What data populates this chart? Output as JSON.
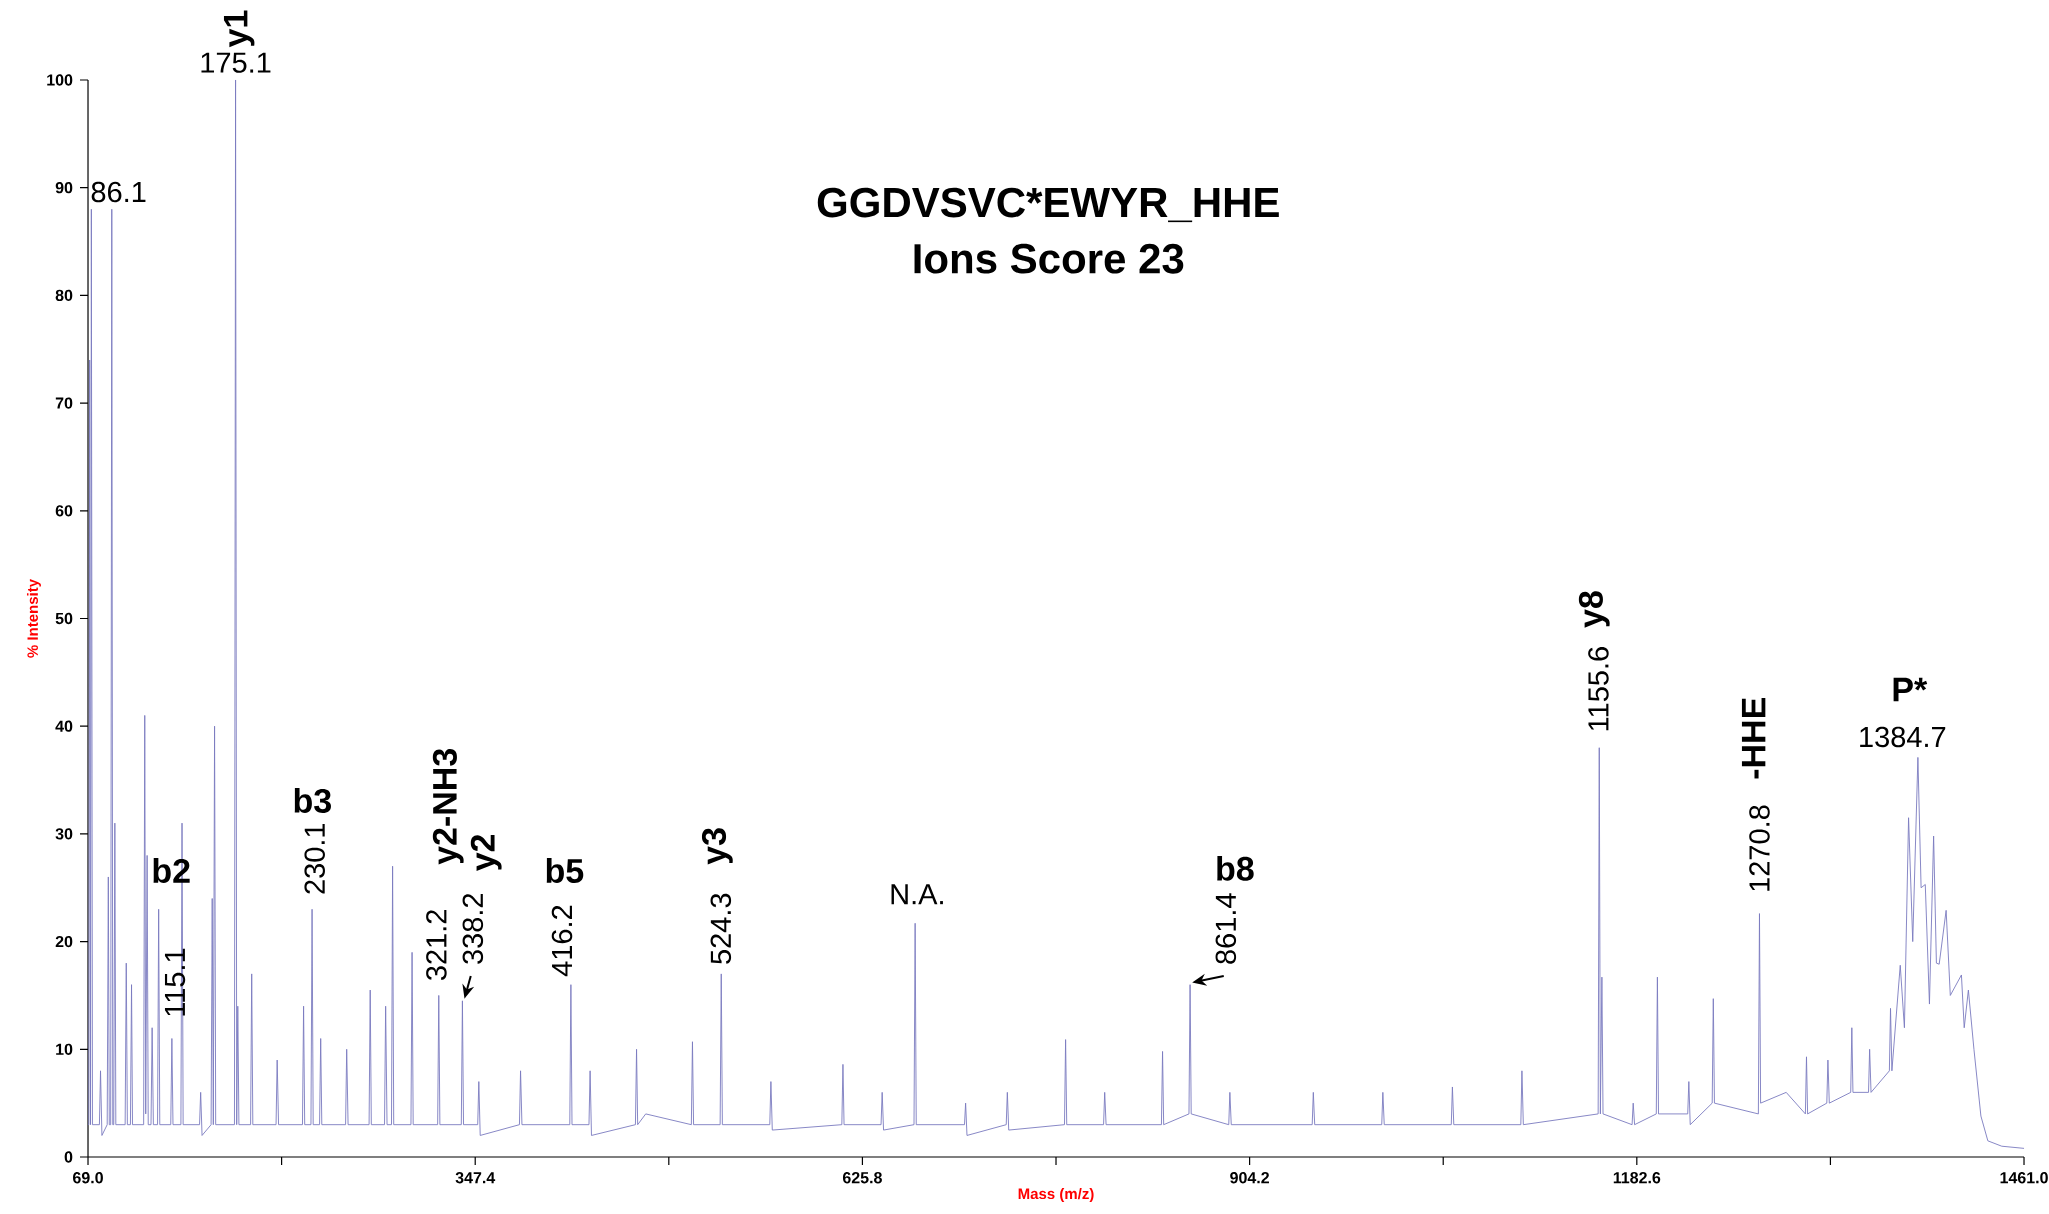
{
  "chart_data": {
    "type": "line",
    "title": "GGDVSVC*EWYR_HHE",
    "subtitle": "Ions Score 23",
    "xlabel": "Mass (m/z)",
    "ylabel": "% Intensity",
    "color": "#7b7bc0",
    "marker": "none",
    "line_style": "solid",
    "xlim": [
      69.0,
      1461.0
    ],
    "ylim": [
      0,
      100
    ],
    "xticks": [
      {
        "value": 69.0,
        "label": "69.0"
      },
      {
        "value": 208.2,
        "label": null
      },
      {
        "value": 347.4,
        "label": "347.4"
      },
      {
        "value": 486.6,
        "label": null
      },
      {
        "value": 625.8,
        "label": "625.8"
      },
      {
        "value": 765.0,
        "label": null
      },
      {
        "value": 904.2,
        "label": "904.2"
      },
      {
        "value": 1043.4,
        "label": null
      },
      {
        "value": 1182.6,
        "label": "1182.6"
      },
      {
        "value": 1321.8,
        "label": null
      },
      {
        "value": 1461.0,
        "label": "1461.0"
      }
    ],
    "yticks": [
      0,
      10,
      20,
      30,
      40,
      50,
      60,
      70,
      80,
      90,
      100
    ],
    "x": [
      69.0,
      69.6,
      70.2,
      70.8,
      71.4,
      72.2,
      77.2,
      78,
      79,
      82.8,
      83.6,
      84.3,
      85.3,
      86.1,
      86.8,
      87.5,
      88.3,
      89,
      95.7,
      96.5,
      97.3,
      99.5,
      100.3,
      101,
      109,
      109.8,
      110.5,
      111.5,
      112.3,
      114.3,
      115.1,
      116,
      119,
      119.8,
      120.6,
      128.5,
      129.3,
      130.1,
      135.8,
      136.6,
      137.4,
      149.2,
      150,
      151,
      157.5,
      158.3,
      159.1,
      160,
      160.8,
      174.3,
      175.1,
      175.9,
      176.7,
      177.5,
      185.9,
      186.7,
      187.5,
      204.2,
      205,
      206,
      223.2,
      224,
      224.8,
      229.3,
      230.1,
      230.9,
      235.5,
      236.3,
      237.1,
      254.2,
      255,
      256,
      271.1,
      271.9,
      272.7,
      282.2,
      283,
      284,
      287.2,
      288,
      288.8,
      301.2,
      302,
      302.8,
      320.4,
      321.2,
      322,
      337.4,
      338.2,
      339,
      349.2,
      350,
      351,
      379.2,
      380,
      381,
      415.4,
      416.2,
      417,
      429.2,
      430,
      431,
      462.6,
      463.4,
      464.2,
      470,
      502.8,
      503.6,
      504.4,
      523.5,
      524.3,
      525.1,
      559.2,
      560,
      561,
      611,
      611.8,
      612.6,
      639.2,
      640,
      641,
      662.9,
      663.7,
      664.5,
      699.2,
      700,
      701,
      729.2,
      730,
      731,
      771.1,
      771.9,
      772.7,
      799.2,
      800,
      801,
      840.8,
      841.6,
      842.4,
      860.6,
      861.4,
      862.2,
      889.2,
      890,
      891,
      949.2,
      950,
      951,
      999.2,
      1000,
      1001,
      1049.2,
      1050,
      1051,
      1099.2,
      1100,
      1101,
      1154.8,
      1155.6,
      1156.4,
      1157.5,
      1158.3,
      1179.2,
      1180,
      1181,
      1196.6,
      1197.4,
      1198.2,
      1219.2,
      1220,
      1221,
      1236.8,
      1237.6,
      1238.4,
      1270,
      1270.8,
      1271.6,
      1290,
      1303.8,
      1304.6,
      1305.4,
      1319.2,
      1320,
      1321,
      1336.4,
      1337.2,
      1338,
      1349.2,
      1350,
      1351,
      1364.2,
      1365,
      1366,
      1372,
      1375,
      1378,
      1381,
      1384.7,
      1387,
      1390,
      1393,
      1396,
      1398,
      1400,
      1405,
      1408,
      1416,
      1418,
      1421,
      1425,
      1430,
      1435,
      1445,
      1461
    ],
    "values": [
      3,
      3,
      74,
      3,
      88,
      3,
      3,
      8,
      2,
      3,
      26,
      3,
      3,
      88,
      3,
      3,
      31,
      3,
      3,
      18,
      3,
      3,
      16,
      3,
      3,
      41,
      4,
      28,
      3,
      3,
      12,
      3,
      3,
      23,
      3,
      3,
      11,
      3,
      3,
      31,
      3,
      3,
      6,
      2,
      3,
      24,
      3,
      40,
      3,
      3,
      100,
      3,
      14,
      3,
      3,
      17,
      3,
      3,
      9,
      3,
      3,
      14,
      3,
      3,
      23,
      3,
      3,
      11,
      3,
      3,
      10,
      3,
      3,
      15.5,
      3,
      3,
      14,
      3,
      3,
      27,
      3,
      3,
      19,
      3,
      3,
      15,
      3,
      3,
      14.5,
      3,
      3,
      7,
      2,
      3,
      8,
      3,
      3,
      16,
      3,
      3,
      8,
      2,
      3,
      10,
      3,
      4,
      3,
      10.7,
      3,
      3,
      17,
      3,
      3,
      7,
      2.5,
      3,
      8.6,
      3,
      3,
      6,
      2.5,
      3,
      21.7,
      3,
      3,
      5,
      2,
      3,
      6,
      2.5,
      3,
      10.9,
      3,
      3,
      6,
      3,
      3,
      9.8,
      3,
      4,
      16,
      4,
      3,
      6,
      3,
      3,
      6,
      3,
      3,
      6,
      3,
      3,
      6.5,
      3,
      3,
      8,
      3,
      4,
      38,
      4,
      16.7,
      4,
      3,
      5,
      3,
      4,
      16.7,
      4,
      4,
      7,
      3,
      5,
      14.7,
      5,
      4,
      22.6,
      5,
      6,
      4,
      9.3,
      4,
      5,
      9,
      5,
      6,
      12,
      6,
      6,
      10,
      6,
      8,
      13.8,
      8,
      17.8,
      12,
      31.5,
      20,
      37.1,
      25,
      25.3,
      14.2,
      29.8,
      18,
      17.9,
      22.9,
      15,
      16.9,
      12,
      15.5,
      10,
      3.8,
      1.5,
      1,
      0.8
    ],
    "annotations": [
      "y1",
      {
        "text": "175.1",
        "x": 175.1,
        "y": 100
      },
      {
        "text": "86.1",
        "x": 86.1,
        "y": 88
      },
      "b2",
      {
        "text": "115.1",
        "x": 115.1,
        "y": 12
      },
      "b3",
      {
        "text": "230.1",
        "x": 230.1,
        "y": 23
      },
      "y2-NH3",
      {
        "text": "321.2",
        "x": 321.2,
        "y": 15
      },
      "y2",
      {
        "text": "338.2",
        "x": 338.2,
        "y": 14.5
      },
      "b5",
      {
        "text": "416.2",
        "x": 416.2,
        "y": 16
      },
      "y3",
      {
        "text": "524.3",
        "x": 524.3,
        "y": 17
      },
      {
        "text": "N.A.",
        "x": 663.7,
        "y": 21.7
      },
      "b8",
      {
        "text": "861.4",
        "x": 861.4,
        "y": 16
      },
      "y8",
      {
        "text": "1155.6",
        "x": 1155.6,
        "y": 38
      },
      "-HHE",
      {
        "text": "1270.8",
        "x": 1270.8,
        "y": 22.6
      },
      "P*",
      {
        "text": "1384.7",
        "x": 1384.7,
        "y": 37.1
      }
    ]
  }
}
